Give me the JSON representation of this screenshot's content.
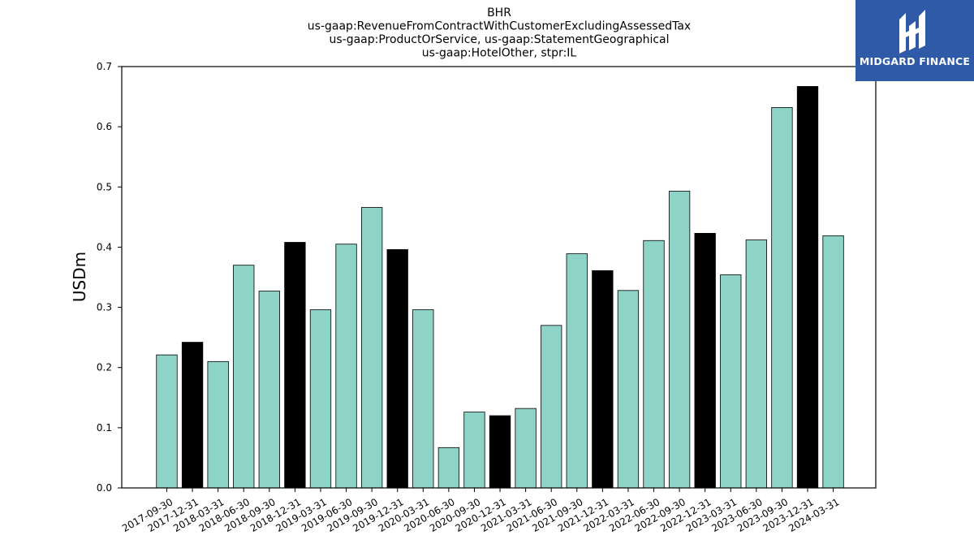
{
  "chart_data": {
    "type": "bar",
    "title_lines": [
      "BHR",
      "us-gaap:RevenueFromContractWithCustomerExcludingAssessedTax",
      "us-gaap:ProductOrService, us-gaap:StatementGeographical",
      "us-gaap:HotelOther, stpr:IL"
    ],
    "ylabel": "USDm",
    "xlabel": "",
    "ylim": [
      0,
      0.7
    ],
    "yticks": [
      "0.0",
      "0.1",
      "0.2",
      "0.3",
      "0.4",
      "0.5",
      "0.6",
      "0.7"
    ],
    "categories": [
      "2017-09-30",
      "2017-12-31",
      "2018-03-31",
      "2018-06-30",
      "2018-09-30",
      "2018-12-31",
      "2019-03-31",
      "2019-06-30",
      "2019-09-30",
      "2019-12-31",
      "2020-03-31",
      "2020-06-30",
      "2020-09-30",
      "2020-12-31",
      "2021-03-31",
      "2021-06-30",
      "2021-09-30",
      "2021-12-31",
      "2022-03-31",
      "2022-06-30",
      "2022-09-30",
      "2022-12-31",
      "2023-03-31",
      "2023-06-30",
      "2023-09-30",
      "2023-12-31",
      "2024-03-31"
    ],
    "values": [
      0.221,
      0.242,
      0.21,
      0.37,
      0.327,
      0.408,
      0.296,
      0.405,
      0.466,
      0.396,
      0.296,
      0.067,
      0.126,
      0.12,
      0.132,
      0.27,
      0.389,
      0.361,
      0.328,
      0.411,
      0.493,
      0.423,
      0.354,
      0.412,
      0.632,
      0.667,
      0.419
    ],
    "colors": {
      "quarter": "#8dd3c7",
      "year_end": "#000000",
      "edge": "#000000"
    },
    "year_end_suffix": "-12-31",
    "grid": false,
    "legend": "none"
  },
  "logo": {
    "text": "MIDGARD FINANCE",
    "icon": "midgard-logo-icon",
    "color": "#2f5aa8"
  }
}
